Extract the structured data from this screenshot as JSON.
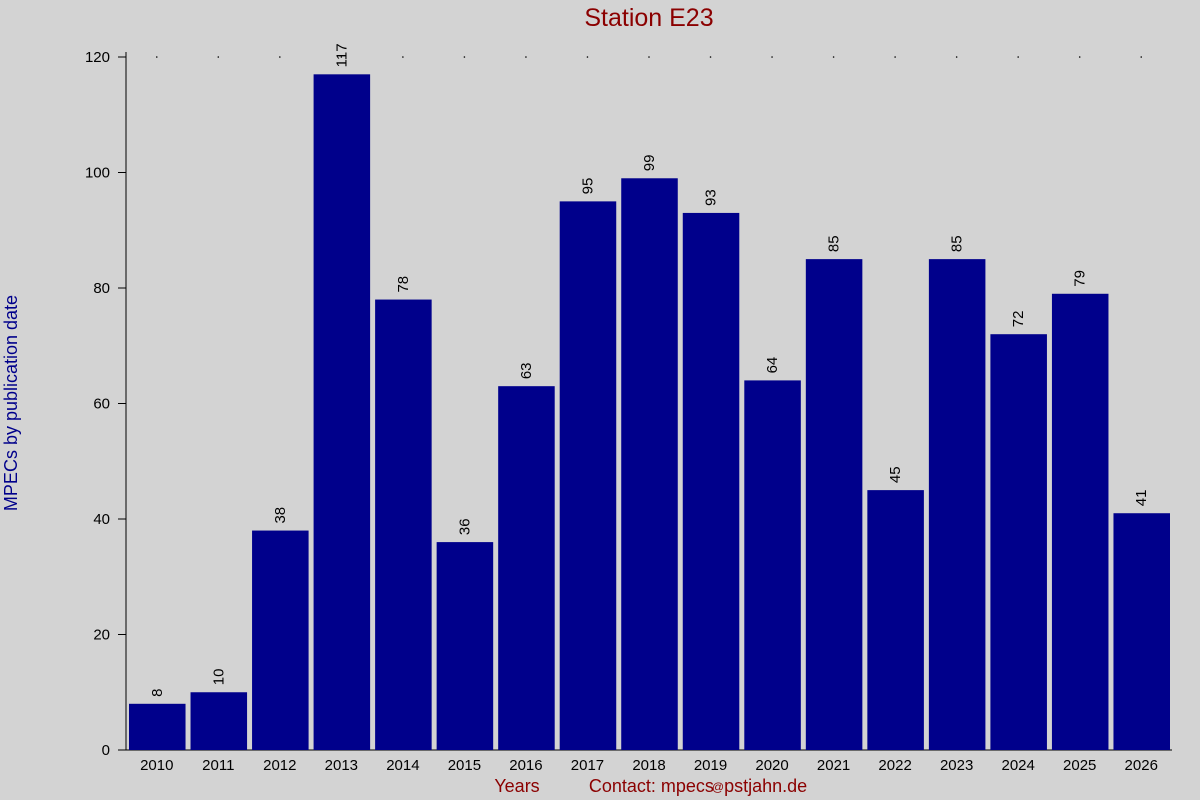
{
  "chart_data": {
    "type": "bar",
    "title": "Station E23",
    "ylabel": "MPECs by publication date",
    "xlabel": "Years",
    "ylim": [
      0,
      120
    ],
    "yticks": [
      0,
      20,
      40,
      60,
      80,
      100,
      120
    ],
    "categories": [
      "2010",
      "2011",
      "2012",
      "2013",
      "2014",
      "2015",
      "2016",
      "2017",
      "2018",
      "2019",
      "2020",
      "2021",
      "2022",
      "2023",
      "2024",
      "2025",
      "2026"
    ],
    "values": [
      8,
      10,
      38,
      117,
      78,
      36,
      63,
      95,
      99,
      93,
      64,
      85,
      45,
      85,
      72,
      79,
      41
    ],
    "value_labels": [
      "8",
      "10",
      "38",
      "117",
      "78",
      "36",
      "63",
      "95",
      "99",
      "93",
      "64",
      "85",
      "45",
      "85",
      "72",
      "79",
      "41"
    ],
    "grid": false
  },
  "footer": {
    "contact": "Contact: mpecs",
    "at_sign": "@",
    "domain": "pstjahn.de"
  },
  "colors": {
    "background": "#d3d3d3",
    "bar": "#00008b",
    "title": "#8b0000",
    "ylabel": "#00008b",
    "footer": "#8b0000",
    "axis": "#000000"
  }
}
